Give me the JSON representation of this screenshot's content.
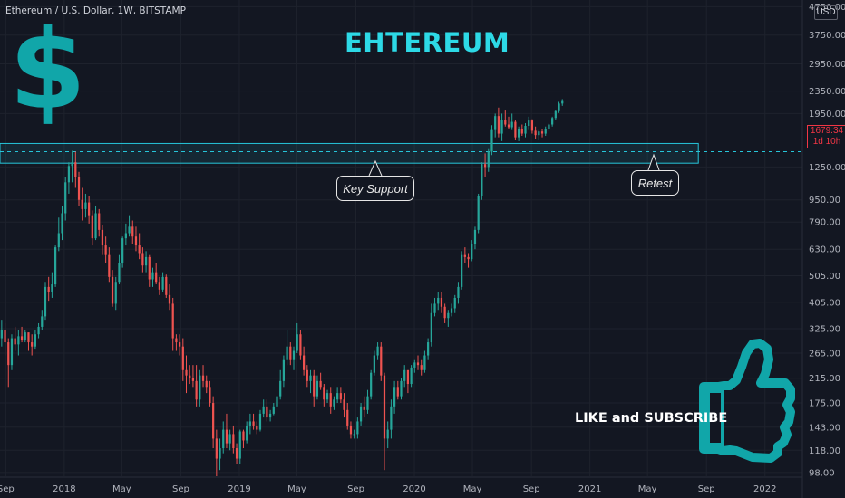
{
  "header": {
    "symbol_line": "Ethereum / U.S. Dollar, 1W, BITSTAMP"
  },
  "annotations": {
    "title": "EHTEREUM",
    "dollar_sign": "$",
    "key_support": "Key Support",
    "retest": "Retest",
    "like_subscribe": "LIKE and SUBSCRIBE"
  },
  "price_axis": {
    "currency": "USD",
    "last_price": "1679.34",
    "countdown": "1d 10h"
  },
  "colors": {
    "background": "#131722",
    "up_candle": "#26a69a",
    "down_candle": "#ef5350",
    "support_zone": "#26c6da",
    "title_color": "#2dd9e6",
    "accent_teal": "#11a6a9",
    "last_price_color": "#f23645"
  },
  "icons": [
    "dollar-sign-icon",
    "thumbs-up-icon"
  ],
  "chart_data": {
    "type": "candlestick",
    "title": "",
    "y_scale": "log",
    "ylim": [
      95,
      4800
    ],
    "xlim": [
      "2017-08-20",
      "2022-03-20"
    ],
    "y_ticks": [
      98,
      118,
      143,
      175,
      215,
      265,
      325,
      405,
      505,
      630,
      790,
      950,
      1250,
      1950,
      2350,
      2950,
      3750,
      4750
    ],
    "y_tick_labels": [
      "98.00",
      "118.00",
      "143.00",
      "175.00",
      "215.00",
      "265.00",
      "325.00",
      "405.00",
      "505.00",
      "630.00",
      "790.00",
      "950.00",
      "1250.00",
      "1950.00",
      "2350.00",
      "2950.00",
      "3750.00",
      "4750.00"
    ],
    "x_ticks": [
      {
        "label": "Sep",
        "date": "2017-09-01"
      },
      {
        "label": "2018",
        "date": "2018-01-01"
      },
      {
        "label": "May",
        "date": "2018-05-01"
      },
      {
        "label": "Sep",
        "date": "2018-09-01"
      },
      {
        "label": "2019",
        "date": "2019-01-01"
      },
      {
        "label": "May",
        "date": "2019-05-01"
      },
      {
        "label": "Sep",
        "date": "2019-09-01"
      },
      {
        "label": "2020",
        "date": "2020-01-01"
      },
      {
        "label": "May",
        "date": "2020-05-01"
      },
      {
        "label": "Sep",
        "date": "2020-09-01"
      },
      {
        "label": "2021",
        "date": "2021-01-01"
      },
      {
        "label": "May",
        "date": "2021-05-01"
      },
      {
        "label": "Sep",
        "date": "2021-09-01"
      },
      {
        "label": "2022",
        "date": "2022-01-01"
      }
    ],
    "support_zone": {
      "low": 1290,
      "high": 1520,
      "from": "2017-08-20",
      "to": "2021-08-15"
    },
    "dashed_level": 1420,
    "last_price": 1679.34,
    "series": [
      {
        "name": "",
        "type": "candles",
        "values": [
          [
            300,
            350,
            280,
            320
          ],
          [
            320,
            340,
            260,
            290
          ],
          [
            290,
            300,
            200,
            240
          ],
          [
            240,
            310,
            230,
            300
          ],
          [
            300,
            330,
            270,
            285
          ],
          [
            285,
            320,
            260,
            305
          ],
          [
            305,
            330,
            290,
            295
          ],
          [
            295,
            320,
            290,
            315
          ],
          [
            315,
            310,
            270,
            290
          ],
          [
            290,
            310,
            260,
            280
          ],
          [
            280,
            320,
            275,
            310
          ],
          [
            310,
            340,
            300,
            330
          ],
          [
            330,
            380,
            320,
            360
          ],
          [
            360,
            480,
            350,
            460
          ],
          [
            460,
            500,
            410,
            440
          ],
          [
            440,
            520,
            420,
            470
          ],
          [
            470,
            650,
            460,
            640
          ],
          [
            640,
            820,
            620,
            720
          ],
          [
            720,
            900,
            680,
            850
          ],
          [
            850,
            1150,
            800,
            1100
          ],
          [
            1100,
            1300,
            1000,
            1260
          ],
          [
            1260,
            1430,
            1100,
            1300
          ],
          [
            1300,
            1420,
            1050,
            1150
          ],
          [
            1150,
            1200,
            900,
            950
          ],
          [
            950,
            1050,
            800,
            880
          ],
          [
            880,
            1000,
            820,
            930
          ],
          [
            930,
            980,
            780,
            830
          ],
          [
            830,
            870,
            650,
            690
          ],
          [
            690,
            900,
            680,
            850
          ],
          [
            850,
            880,
            700,
            740
          ],
          [
            740,
            770,
            600,
            650
          ],
          [
            650,
            700,
            560,
            600
          ],
          [
            600,
            640,
            480,
            500
          ],
          [
            500,
            530,
            390,
            400
          ],
          [
            400,
            500,
            380,
            480
          ],
          [
            480,
            600,
            470,
            560
          ],
          [
            560,
            700,
            540,
            690
          ],
          [
            690,
            780,
            650,
            720
          ],
          [
            720,
            830,
            700,
            760
          ],
          [
            760,
            800,
            660,
            700
          ],
          [
            700,
            760,
            620,
            650
          ],
          [
            650,
            720,
            580,
            610
          ],
          [
            610,
            640,
            520,
            550
          ],
          [
            550,
            620,
            520,
            590
          ],
          [
            590,
            600,
            460,
            490
          ],
          [
            490,
            540,
            460,
            520
          ],
          [
            520,
            560,
            470,
            480
          ],
          [
            480,
            500,
            430,
            450
          ],
          [
            450,
            520,
            440,
            500
          ],
          [
            500,
            510,
            420,
            430
          ],
          [
            430,
            470,
            380,
            400
          ],
          [
            400,
            420,
            270,
            300
          ],
          [
            300,
            310,
            270,
            290
          ],
          [
            290,
            310,
            260,
            280
          ],
          [
            280,
            300,
            210,
            230
          ],
          [
            230,
            260,
            190,
            220
          ],
          [
            220,
            240,
            205,
            215
          ],
          [
            215,
            240,
            200,
            210
          ],
          [
            210,
            240,
            170,
            180
          ],
          [
            180,
            230,
            170,
            220
          ],
          [
            220,
            240,
            200,
            210
          ],
          [
            210,
            220,
            190,
            200
          ],
          [
            200,
            210,
            170,
            175
          ],
          [
            175,
            185,
            120,
            130
          ],
          [
            130,
            140,
            95,
            110
          ],
          [
            110,
            130,
            100,
            120
          ],
          [
            120,
            150,
            115,
            140
          ],
          [
            140,
            160,
            120,
            125
          ],
          [
            125,
            140,
            118,
            135
          ],
          [
            135,
            145,
            115,
            120
          ],
          [
            120,
            125,
            105,
            110
          ],
          [
            110,
            140,
            105,
            138
          ],
          [
            138,
            140,
            120,
            128
          ],
          [
            128,
            150,
            125,
            145
          ],
          [
            145,
            160,
            135,
            150
          ],
          [
            150,
            160,
            140,
            145
          ],
          [
            145,
            150,
            135,
            140
          ],
          [
            140,
            165,
            138,
            160
          ],
          [
            160,
            180,
            155,
            170
          ],
          [
            170,
            180,
            150,
            155
          ],
          [
            155,
            165,
            150,
            160
          ],
          [
            160,
            175,
            158,
            170
          ],
          [
            170,
            200,
            165,
            185
          ],
          [
            185,
            230,
            180,
            210
          ],
          [
            210,
            260,
            200,
            250
          ],
          [
            250,
            320,
            240,
            280
          ],
          [
            280,
            290,
            240,
            250
          ],
          [
            250,
            280,
            230,
            270
          ],
          [
            270,
            340,
            265,
            310
          ],
          [
            310,
            320,
            250,
            260
          ],
          [
            260,
            280,
            220,
            230
          ],
          [
            230,
            240,
            200,
            210
          ],
          [
            210,
            230,
            190,
            220
          ],
          [
            220,
            230,
            170,
            185
          ],
          [
            185,
            220,
            180,
            210
          ],
          [
            210,
            225,
            195,
            200
          ],
          [
            200,
            205,
            170,
            180
          ],
          [
            180,
            195,
            175,
            190
          ],
          [
            190,
            200,
            160,
            170
          ],
          [
            170,
            185,
            165,
            180
          ],
          [
            180,
            200,
            175,
            190
          ],
          [
            190,
            200,
            175,
            180
          ],
          [
            180,
            190,
            155,
            165
          ],
          [
            165,
            175,
            140,
            145
          ],
          [
            145,
            150,
            130,
            135
          ],
          [
            135,
            140,
            130,
            135
          ],
          [
            135,
            155,
            130,
            150
          ],
          [
            150,
            175,
            145,
            170
          ],
          [
            170,
            185,
            155,
            165
          ],
          [
            165,
            195,
            160,
            185
          ],
          [
            185,
            230,
            180,
            225
          ],
          [
            225,
            270,
            220,
            260
          ],
          [
            260,
            290,
            250,
            280
          ],
          [
            280,
            290,
            210,
            220
          ],
          [
            220,
            225,
            100,
            130
          ],
          [
            130,
            150,
            120,
            140
          ],
          [
            140,
            180,
            130,
            170
          ],
          [
            170,
            210,
            160,
            200
          ],
          [
            200,
            210,
            180,
            185
          ],
          [
            185,
            215,
            180,
            210
          ],
          [
            210,
            240,
            200,
            230
          ],
          [
            230,
            215,
            190,
            205
          ],
          [
            205,
            240,
            200,
            235
          ],
          [
            235,
            250,
            225,
            245
          ],
          [
            245,
            260,
            230,
            240
          ],
          [
            240,
            250,
            220,
            230
          ],
          [
            230,
            270,
            225,
            260
          ],
          [
            260,
            300,
            250,
            290
          ],
          [
            290,
            400,
            280,
            370
          ],
          [
            370,
            420,
            360,
            400
          ],
          [
            400,
            440,
            380,
            420
          ],
          [
            420,
            440,
            370,
            390
          ],
          [
            390,
            400,
            340,
            355
          ],
          [
            355,
            380,
            330,
            370
          ],
          [
            370,
            400,
            360,
            385
          ],
          [
            385,
            430,
            370,
            420
          ],
          [
            420,
            480,
            400,
            460
          ],
          [
            460,
            620,
            450,
            600
          ],
          [
            600,
            640,
            560,
            590
          ],
          [
            590,
            610,
            540,
            580
          ],
          [
            580,
            680,
            570,
            660
          ],
          [
            660,
            760,
            630,
            740
          ],
          [
            740,
            1000,
            720,
            980
          ],
          [
            980,
            1300,
            950,
            1280
          ],
          [
            1280,
            1400,
            1150,
            1250
          ],
          [
            1250,
            1450,
            1200,
            1420
          ],
          [
            1420,
            1770,
            1380,
            1700
          ],
          [
            1700,
            1950,
            1600,
            1910
          ],
          [
            1910,
            2050,
            1600,
            1650
          ],
          [
            1650,
            1950,
            1550,
            1850
          ],
          [
            1850,
            2000,
            1750,
            1780
          ],
          [
            1780,
            1900,
            1720,
            1740
          ],
          [
            1740,
            1950,
            1700,
            1820
          ],
          [
            1820,
            1850,
            1560,
            1600
          ],
          [
            1600,
            1750,
            1550,
            1720
          ],
          [
            1720,
            1780,
            1620,
            1650
          ],
          [
            1650,
            1800,
            1600,
            1760
          ],
          [
            1760,
            1900,
            1700,
            1840
          ],
          [
            1840,
            1860,
            1650,
            1690
          ],
          [
            1690,
            1750,
            1580,
            1630
          ],
          [
            1630,
            1700,
            1560,
            1680
          ],
          [
            1680,
            1720,
            1600,
            1650
          ],
          [
            1650,
            1750,
            1620,
            1720
          ],
          [
            1720,
            1800,
            1680,
            1780
          ],
          [
            1780,
            1900,
            1750,
            1880
          ],
          [
            1880,
            2000,
            1850,
            1990
          ],
          [
            1990,
            2150,
            1960,
            2120
          ],
          [
            2120,
            2200,
            2080,
            2180
          ]
        ]
      }
    ]
  }
}
